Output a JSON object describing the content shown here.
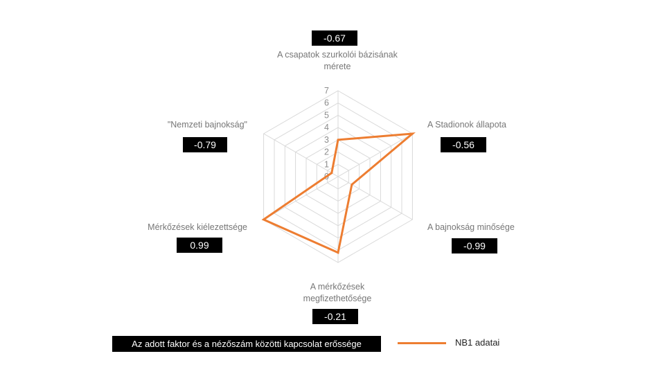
{
  "chart_data": {
    "type": "radar",
    "axes": [
      "A csapatok szurkolói bázisának mérete",
      "A Stadionok állapota",
      "A bajnokság minősége",
      "A mérkőzések megfizethetősége",
      "Mérkőzések kiélezettsége",
      "\"Nemzeti bajnokság\""
    ],
    "correlations": [
      "-0.67",
      "-0.56",
      "-0.99",
      "-0.21",
      "0.99",
      "-0.79"
    ],
    "ticks": [
      "0",
      "1",
      "2",
      "3",
      "4",
      "5",
      "6",
      "7"
    ],
    "rlim": [
      0,
      7
    ],
    "series": [
      {
        "name": "NB1 adatai",
        "color": "#ED7D31",
        "values": [
          3,
          7,
          1.3,
          6.2,
          7,
          0.6
        ]
      }
    ],
    "gridline_color": "#D9D9D9"
  },
  "legend": {
    "relationship_label": "Az adott faktor és a nézőszám közötti kapcsolat erőssége"
  }
}
